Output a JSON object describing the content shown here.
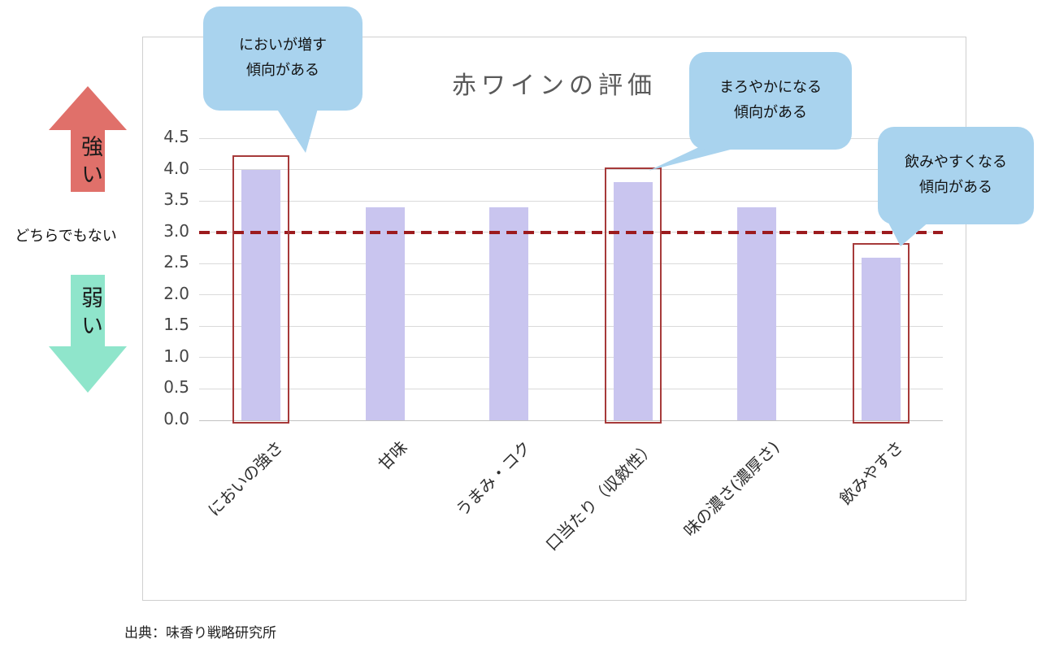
{
  "source": "出典：味香り戦略研究所",
  "left_legend": {
    "strong": "強い",
    "neutral": "どちらでもない",
    "weak": "弱い"
  },
  "colors": {
    "strong_arrow": "#e0706a",
    "weak_arrow": "#8fe5cb",
    "callout": "#a9d3ee",
    "dashed_line": "#9c1b1e",
    "highlight_box": "#a63a3a",
    "bar": "#c9c5ef",
    "title_text": "#595959"
  },
  "callouts": [
    {
      "text": "においが増す\n傾向がある"
    },
    {
      "text": "まろやかになる\n傾向がある"
    },
    {
      "text": "飲みやすくなる\n傾向がある"
    }
  ],
  "chart_data": {
    "type": "bar",
    "title": "赤ワインの評価",
    "categories": [
      "においの強さ",
      "甘味",
      "うまみ・コク",
      "口当たり（収斂性）",
      "味の濃さ(濃厚さ)",
      "飲みやすさ"
    ],
    "values": [
      4.0,
      3.4,
      3.4,
      3.8,
      3.4,
      2.6
    ],
    "highlighted_indices": [
      0,
      3,
      5
    ],
    "ylim": [
      0,
      4.5
    ],
    "ytick_step": 0.5,
    "grid": true,
    "legend": false,
    "xlabel": "",
    "ylabel": "",
    "reference_line": {
      "value": 3.0,
      "style": "dashed",
      "meaning": "どちらでもない"
    }
  }
}
